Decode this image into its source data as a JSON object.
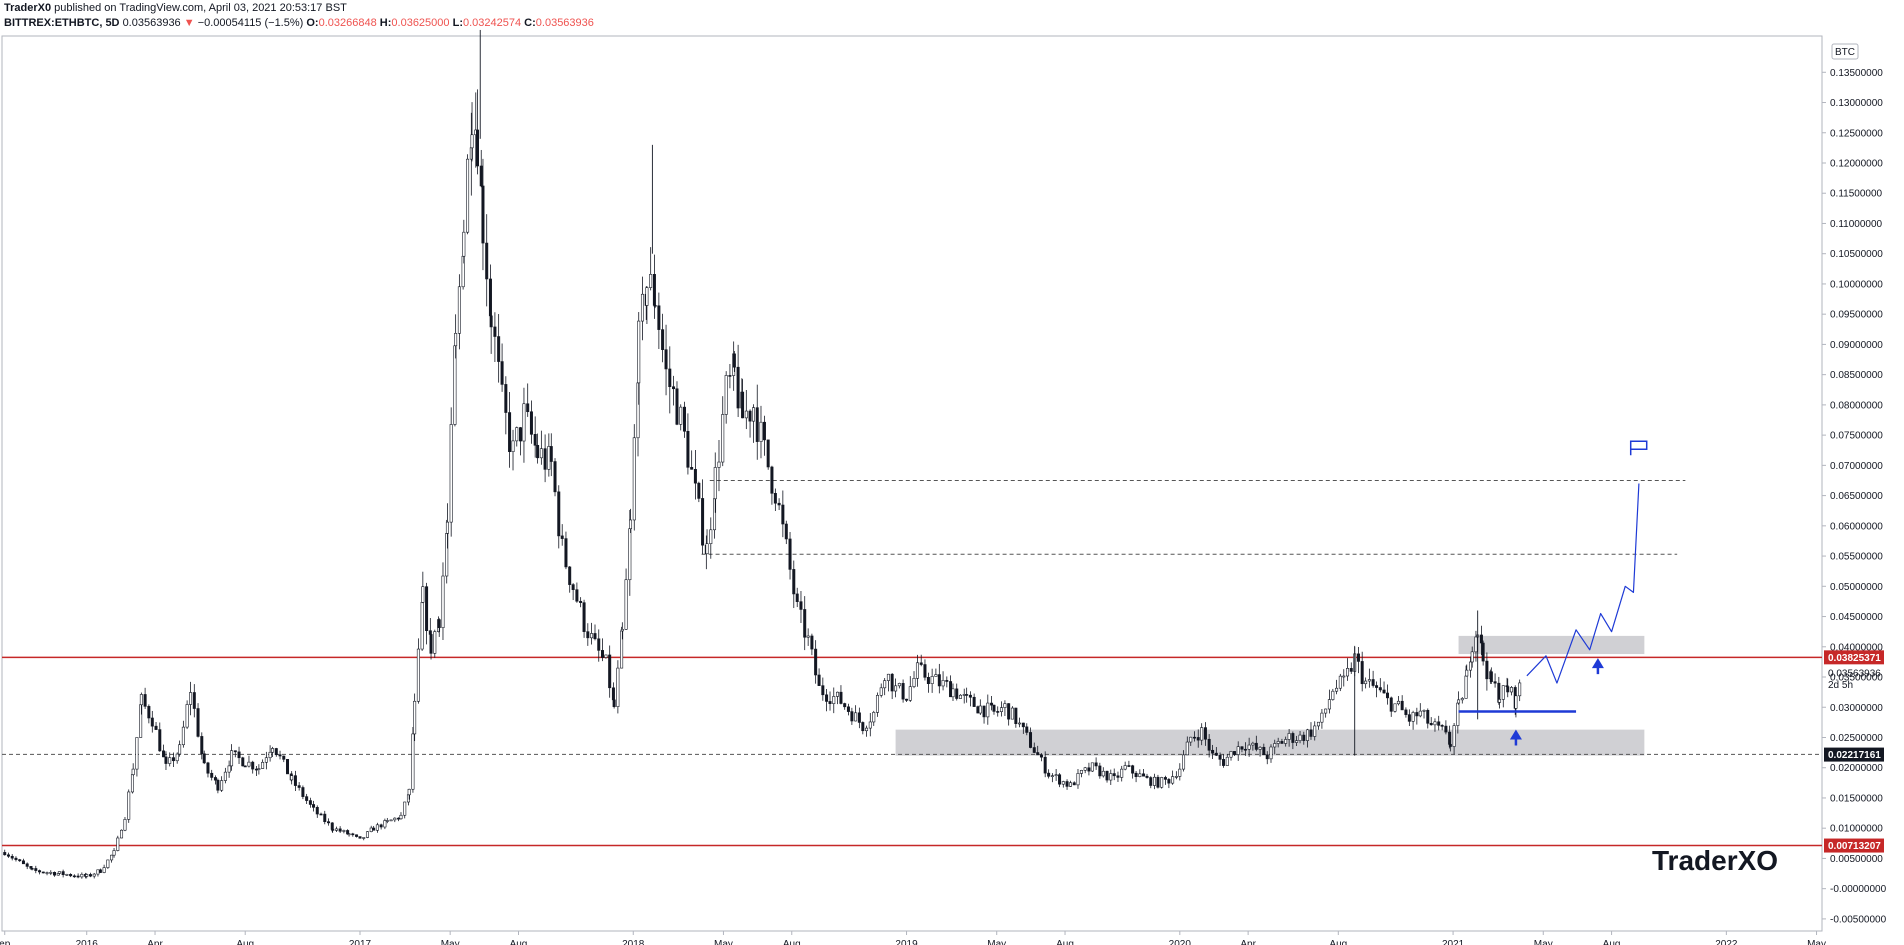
{
  "header": {
    "author": "TraderX0",
    "published": "published on TradingView.com, April 03, 2021 20:53:17 BST",
    "symbol": "BITTREX:ETHBTC, 5D",
    "last": "0.03563936",
    "change": "−0.00054115 (−1.5%)",
    "o_label": "O:",
    "o": "0.03266848",
    "h_label": "H:",
    "h": "0.03625000",
    "l_label": "L:",
    "l": "0.03242574",
    "c_label": "C:",
    "c": "0.03563936"
  },
  "axis_unit": "BTC",
  "watermark": "TraderXO",
  "countdown": "2d 5h",
  "colors": {
    "candle": "#131722",
    "resistance": "#c62828",
    "support_dash": "#555555",
    "annotation": "#1e3ad6",
    "zone": "#c8c8cc",
    "price_tag_current": "#ffffff"
  },
  "chart_data": {
    "type": "candlestick",
    "ylim": [
      -0.007,
      0.141
    ],
    "y_ticks": [
      "-0.00500000",
      "-0.00000000",
      "0.00500000",
      "0.01000000",
      "0.01500000",
      "0.02000000",
      "0.02500000",
      "0.03000000",
      "0.03500000",
      "0.04000000",
      "0.04500000",
      "0.05000000",
      "0.05500000",
      "0.06000000",
      "0.06500000",
      "0.07000000",
      "0.07500000",
      "0.08000000",
      "0.08500000",
      "0.09000000",
      "0.09500000",
      "0.10000000",
      "0.10500000",
      "0.11000000",
      "0.11500000",
      "0.12000000",
      "0.12500000",
      "0.13000000",
      "0.13500000"
    ],
    "x_ticks": [
      "ep",
      "2016",
      "Apr",
      "Aug",
      "2017",
      "May",
      "Aug",
      "2018",
      "May",
      "Aug",
      "2019",
      "May",
      "Aug",
      "2020",
      "Apr",
      "Aug",
      "2021",
      "May",
      "Aug",
      "2022",
      "May"
    ],
    "x_tick_dates": [
      2015.7,
      2016.0,
      2016.25,
      2016.58,
      2017.0,
      2017.33,
      2017.58,
      2018.0,
      2018.33,
      2018.58,
      2019.0,
      2019.33,
      2019.58,
      2020.0,
      2020.25,
      2020.58,
      2021.0,
      2021.33,
      2021.58,
      2022.0,
      2022.33
    ],
    "xlim": [
      2015.69,
      2022.35
    ],
    "price_path": [
      [
        2015.7,
        0.006
      ],
      [
        2015.8,
        0.003
      ],
      [
        2015.9,
        0.0025
      ],
      [
        2016.0,
        0.002
      ],
      [
        2016.05,
        0.003
      ],
      [
        2016.1,
        0.006
      ],
      [
        2016.14,
        0.012
      ],
      [
        2016.17,
        0.02
      ],
      [
        2016.2,
        0.031
      ],
      [
        2016.24,
        0.028
      ],
      [
        2016.29,
        0.02
      ],
      [
        2016.34,
        0.023
      ],
      [
        2016.38,
        0.033
      ],
      [
        2016.43,
        0.02
      ],
      [
        2016.48,
        0.017
      ],
      [
        2016.53,
        0.022
      ],
      [
        2016.58,
        0.021
      ],
      [
        2016.63,
        0.02
      ],
      [
        2016.68,
        0.024
      ],
      [
        2016.75,
        0.018
      ],
      [
        2016.83,
        0.013
      ],
      [
        2016.9,
        0.01
      ],
      [
        2016.96,
        0.009
      ],
      [
        2017.0,
        0.008
      ],
      [
        2017.05,
        0.01
      ],
      [
        2017.1,
        0.011
      ],
      [
        2017.15,
        0.012
      ],
      [
        2017.18,
        0.016
      ],
      [
        2017.2,
        0.03
      ],
      [
        2017.23,
        0.048
      ],
      [
        2017.26,
        0.04
      ],
      [
        2017.29,
        0.045
      ],
      [
        2017.32,
        0.06
      ],
      [
        2017.35,
        0.09
      ],
      [
        2017.38,
        0.11
      ],
      [
        2017.41,
        0.13
      ],
      [
        2017.43,
        0.125
      ],
      [
        2017.45,
        0.11
      ],
      [
        2017.48,
        0.095
      ],
      [
        2017.52,
        0.08
      ],
      [
        2017.56,
        0.072
      ],
      [
        2017.6,
        0.078
      ],
      [
        2017.65,
        0.072
      ],
      [
        2017.7,
        0.07
      ],
      [
        2017.74,
        0.056
      ],
      [
        2017.78,
        0.05
      ],
      [
        2017.82,
        0.044
      ],
      [
        2017.86,
        0.04
      ],
      [
        2017.9,
        0.037
      ],
      [
        2017.93,
        0.03
      ],
      [
        2017.96,
        0.042
      ],
      [
        2017.99,
        0.06
      ],
      [
        2018.02,
        0.09
      ],
      [
        2018.05,
        0.1
      ],
      [
        2018.08,
        0.098
      ],
      [
        2018.12,
        0.085
      ],
      [
        2018.16,
        0.08
      ],
      [
        2018.2,
        0.072
      ],
      [
        2018.24,
        0.062
      ],
      [
        2018.27,
        0.056
      ],
      [
        2018.3,
        0.068
      ],
      [
        2018.34,
        0.082
      ],
      [
        2018.37,
        0.085
      ],
      [
        2018.4,
        0.078
      ],
      [
        2018.44,
        0.08
      ],
      [
        2018.48,
        0.072
      ],
      [
        2018.52,
        0.066
      ],
      [
        2018.56,
        0.056
      ],
      [
        2018.6,
        0.046
      ],
      [
        2018.64,
        0.041
      ],
      [
        2018.68,
        0.033
      ],
      [
        2018.72,
        0.032
      ],
      [
        2018.76,
        0.031
      ],
      [
        2018.8,
        0.029
      ],
      [
        2018.84,
        0.027
      ],
      [
        2018.88,
        0.029
      ],
      [
        2018.92,
        0.036
      ],
      [
        2018.96,
        0.033
      ],
      [
        2019.0,
        0.032
      ],
      [
        2019.04,
        0.036
      ],
      [
        2019.08,
        0.035
      ],
      [
        2019.12,
        0.034
      ],
      [
        2019.17,
        0.033
      ],
      [
        2019.22,
        0.031
      ],
      [
        2019.27,
        0.03
      ],
      [
        2019.32,
        0.029
      ],
      [
        2019.36,
        0.03
      ],
      [
        2019.4,
        0.028
      ],
      [
        2019.44,
        0.025
      ],
      [
        2019.48,
        0.022
      ],
      [
        2019.52,
        0.019
      ],
      [
        2019.56,
        0.018
      ],
      [
        2019.6,
        0.017
      ],
      [
        2019.64,
        0.019
      ],
      [
        2019.68,
        0.02
      ],
      [
        2019.72,
        0.019
      ],
      [
        2019.76,
        0.018
      ],
      [
        2019.8,
        0.02
      ],
      [
        2019.84,
        0.019
      ],
      [
        2019.88,
        0.018
      ],
      [
        2019.92,
        0.0175
      ],
      [
        2019.96,
        0.018
      ],
      [
        2020.0,
        0.02
      ],
      [
        2020.04,
        0.025
      ],
      [
        2020.08,
        0.026
      ],
      [
        2020.12,
        0.022
      ],
      [
        2020.16,
        0.021
      ],
      [
        2020.2,
        0.023
      ],
      [
        2020.24,
        0.024
      ],
      [
        2020.28,
        0.023
      ],
      [
        2020.32,
        0.022
      ],
      [
        2020.36,
        0.024
      ],
      [
        2020.4,
        0.025
      ],
      [
        2020.44,
        0.025
      ],
      [
        2020.48,
        0.026
      ],
      [
        2020.52,
        0.028
      ],
      [
        2020.56,
        0.033
      ],
      [
        2020.6,
        0.034
      ],
      [
        2020.64,
        0.038
      ],
      [
        2020.68,
        0.034
      ],
      [
        2020.72,
        0.033
      ],
      [
        2020.76,
        0.031
      ],
      [
        2020.8,
        0.03
      ],
      [
        2020.84,
        0.028
      ],
      [
        2020.88,
        0.029
      ],
      [
        2020.92,
        0.027
      ],
      [
        2020.96,
        0.026
      ],
      [
        2020.99,
        0.024
      ],
      [
        2021.02,
        0.03
      ],
      [
        2021.05,
        0.035
      ],
      [
        2021.07,
        0.041
      ],
      [
        2021.09,
        0.043
      ],
      [
        2021.11,
        0.038
      ],
      [
        2021.14,
        0.034
      ],
      [
        2021.17,
        0.032
      ],
      [
        2021.2,
        0.033
      ],
      [
        2021.23,
        0.031
      ],
      [
        2021.25,
        0.0356
      ]
    ],
    "special_wicks": [
      [
        2017.44,
        0.142
      ],
      [
        2018.07,
        0.123
      ],
      [
        2020.64,
        0.04
      ],
      [
        2021.09,
        0.046
      ]
    ],
    "levels": {
      "resistance_line": 0.03825371,
      "support_line": 0.02217161,
      "low_line": 0.00713207,
      "dashed_upper": 0.0675,
      "dashed_mid": 0.0553,
      "dashed_low": 0.0222
    },
    "price_tags": [
      "0.03825371",
      "0.02217161",
      "0.00713207"
    ],
    "current_price_tag": "0.03563936",
    "zones": [
      {
        "x0": 2018.96,
        "x1": 2021.7,
        "y0": 0.022,
        "y1": 0.0263
      },
      {
        "x0": 2021.02,
        "x1": 2021.7,
        "y0": 0.0388,
        "y1": 0.0418
      }
    ],
    "annotations": {
      "horizontal_support": {
        "x0": 2021.02,
        "x1": 2021.45,
        "y": 0.0293
      },
      "up_arrows": [
        [
          2021.23,
          0.025
        ],
        [
          2021.53,
          0.0368
        ]
      ],
      "flag": [
        2021.65,
        0.073
      ]
    }
  }
}
